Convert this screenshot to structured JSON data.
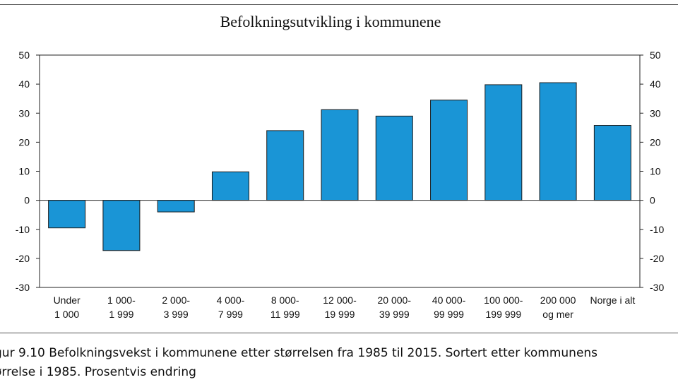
{
  "chart_data": {
    "type": "bar",
    "title": "Befolkningsutvikling i kommunene",
    "categories": [
      [
        "Under",
        "1 000"
      ],
      [
        "1 000-",
        "1 999"
      ],
      [
        "2 000-",
        "3 999"
      ],
      [
        "4 000-",
        "7 999"
      ],
      [
        "8 000-",
        "11 999"
      ],
      [
        "12 000-",
        "19 999"
      ],
      [
        "20 000-",
        "39 999"
      ],
      [
        "40 000-",
        "99 999"
      ],
      [
        "100 000-",
        "199 999"
      ],
      [
        "200 000",
        "og mer"
      ],
      [
        "Norge i alt",
        ""
      ]
    ],
    "values": [
      -9.5,
      -17.3,
      -4.0,
      9.8,
      24.0,
      31.2,
      29.0,
      34.5,
      39.8,
      40.5,
      25.8
    ],
    "ylim": [
      -30,
      50
    ],
    "yticks": [
      50,
      40,
      30,
      20,
      10,
      0,
      -10,
      -20,
      -30
    ],
    "yticks_labels": [
      "50",
      "40",
      "30",
      "20",
      "10",
      "0",
      "-10",
      "-20",
      "-30"
    ],
    "xlabel": "",
    "ylabel": "",
    "grid": false,
    "bar_color": "#1a95d6",
    "secondary_y_axis": true
  },
  "caption": {
    "line1": "gur 9.10  Befolkningsvekst i kommunene etter størrelsen fra 1985 til 2015. Sortert etter kommunens",
    "line2": "ørrelse i 1985. Prosentvis endring"
  }
}
